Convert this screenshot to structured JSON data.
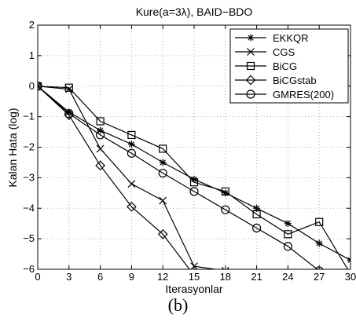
{
  "caption": "(b)",
  "chart_data": {
    "type": "line",
    "title": "Kure(a=3λ), BAID−BDO",
    "xlabel": "Iterasyonlar",
    "ylabel": "Kalan Hata (log)",
    "xlim": [
      0,
      30
    ],
    "ylim": [
      -6,
      2
    ],
    "xticks": [
      0,
      3,
      6,
      9,
      12,
      15,
      18,
      21,
      24,
      27,
      30
    ],
    "yticks": [
      2,
      1,
      0,
      -1,
      -2,
      -3,
      -4,
      -5,
      -6
    ],
    "grid": true,
    "legend_position": "top-right",
    "series": [
      {
        "name": "EKKQR",
        "marker": "star",
        "x": [
          0,
          3,
          6,
          9,
          12,
          15,
          18,
          21,
          24,
          27,
          30
        ],
        "y": [
          0,
          -0.85,
          -1.45,
          -1.9,
          -2.5,
          -3.05,
          -3.5,
          -4.0,
          -4.5,
          -5.15,
          -5.7
        ]
      },
      {
        "name": "CGS",
        "marker": "x",
        "x": [
          0,
          3,
          6,
          9,
          12,
          15,
          18
        ],
        "y": [
          0,
          -0.1,
          -2.05,
          -3.2,
          -3.75,
          -5.9,
          -6.05
        ]
      },
      {
        "name": "BiCG",
        "marker": "square",
        "x": [
          0,
          3,
          6,
          9,
          12,
          15,
          18,
          21,
          24,
          27,
          30
        ],
        "y": [
          0,
          -0.05,
          -1.15,
          -1.6,
          -2.05,
          -3.15,
          -3.45,
          -4.2,
          -4.85,
          -4.45,
          -6.15
        ]
      },
      {
        "name": "BiCGstab",
        "marker": "diamond",
        "x": [
          0,
          3,
          6,
          9,
          12,
          15
        ],
        "y": [
          0,
          -0.95,
          -2.6,
          -3.95,
          -4.85,
          -6.2
        ]
      },
      {
        "name": "GMRES(200)",
        "marker": "circle",
        "x": [
          0,
          3,
          6,
          9,
          12,
          15,
          18,
          21,
          24,
          27
        ],
        "y": [
          0,
          -0.9,
          -1.6,
          -2.2,
          -2.85,
          -3.45,
          -4.05,
          -4.65,
          -5.25,
          -6.05
        ]
      }
    ]
  }
}
